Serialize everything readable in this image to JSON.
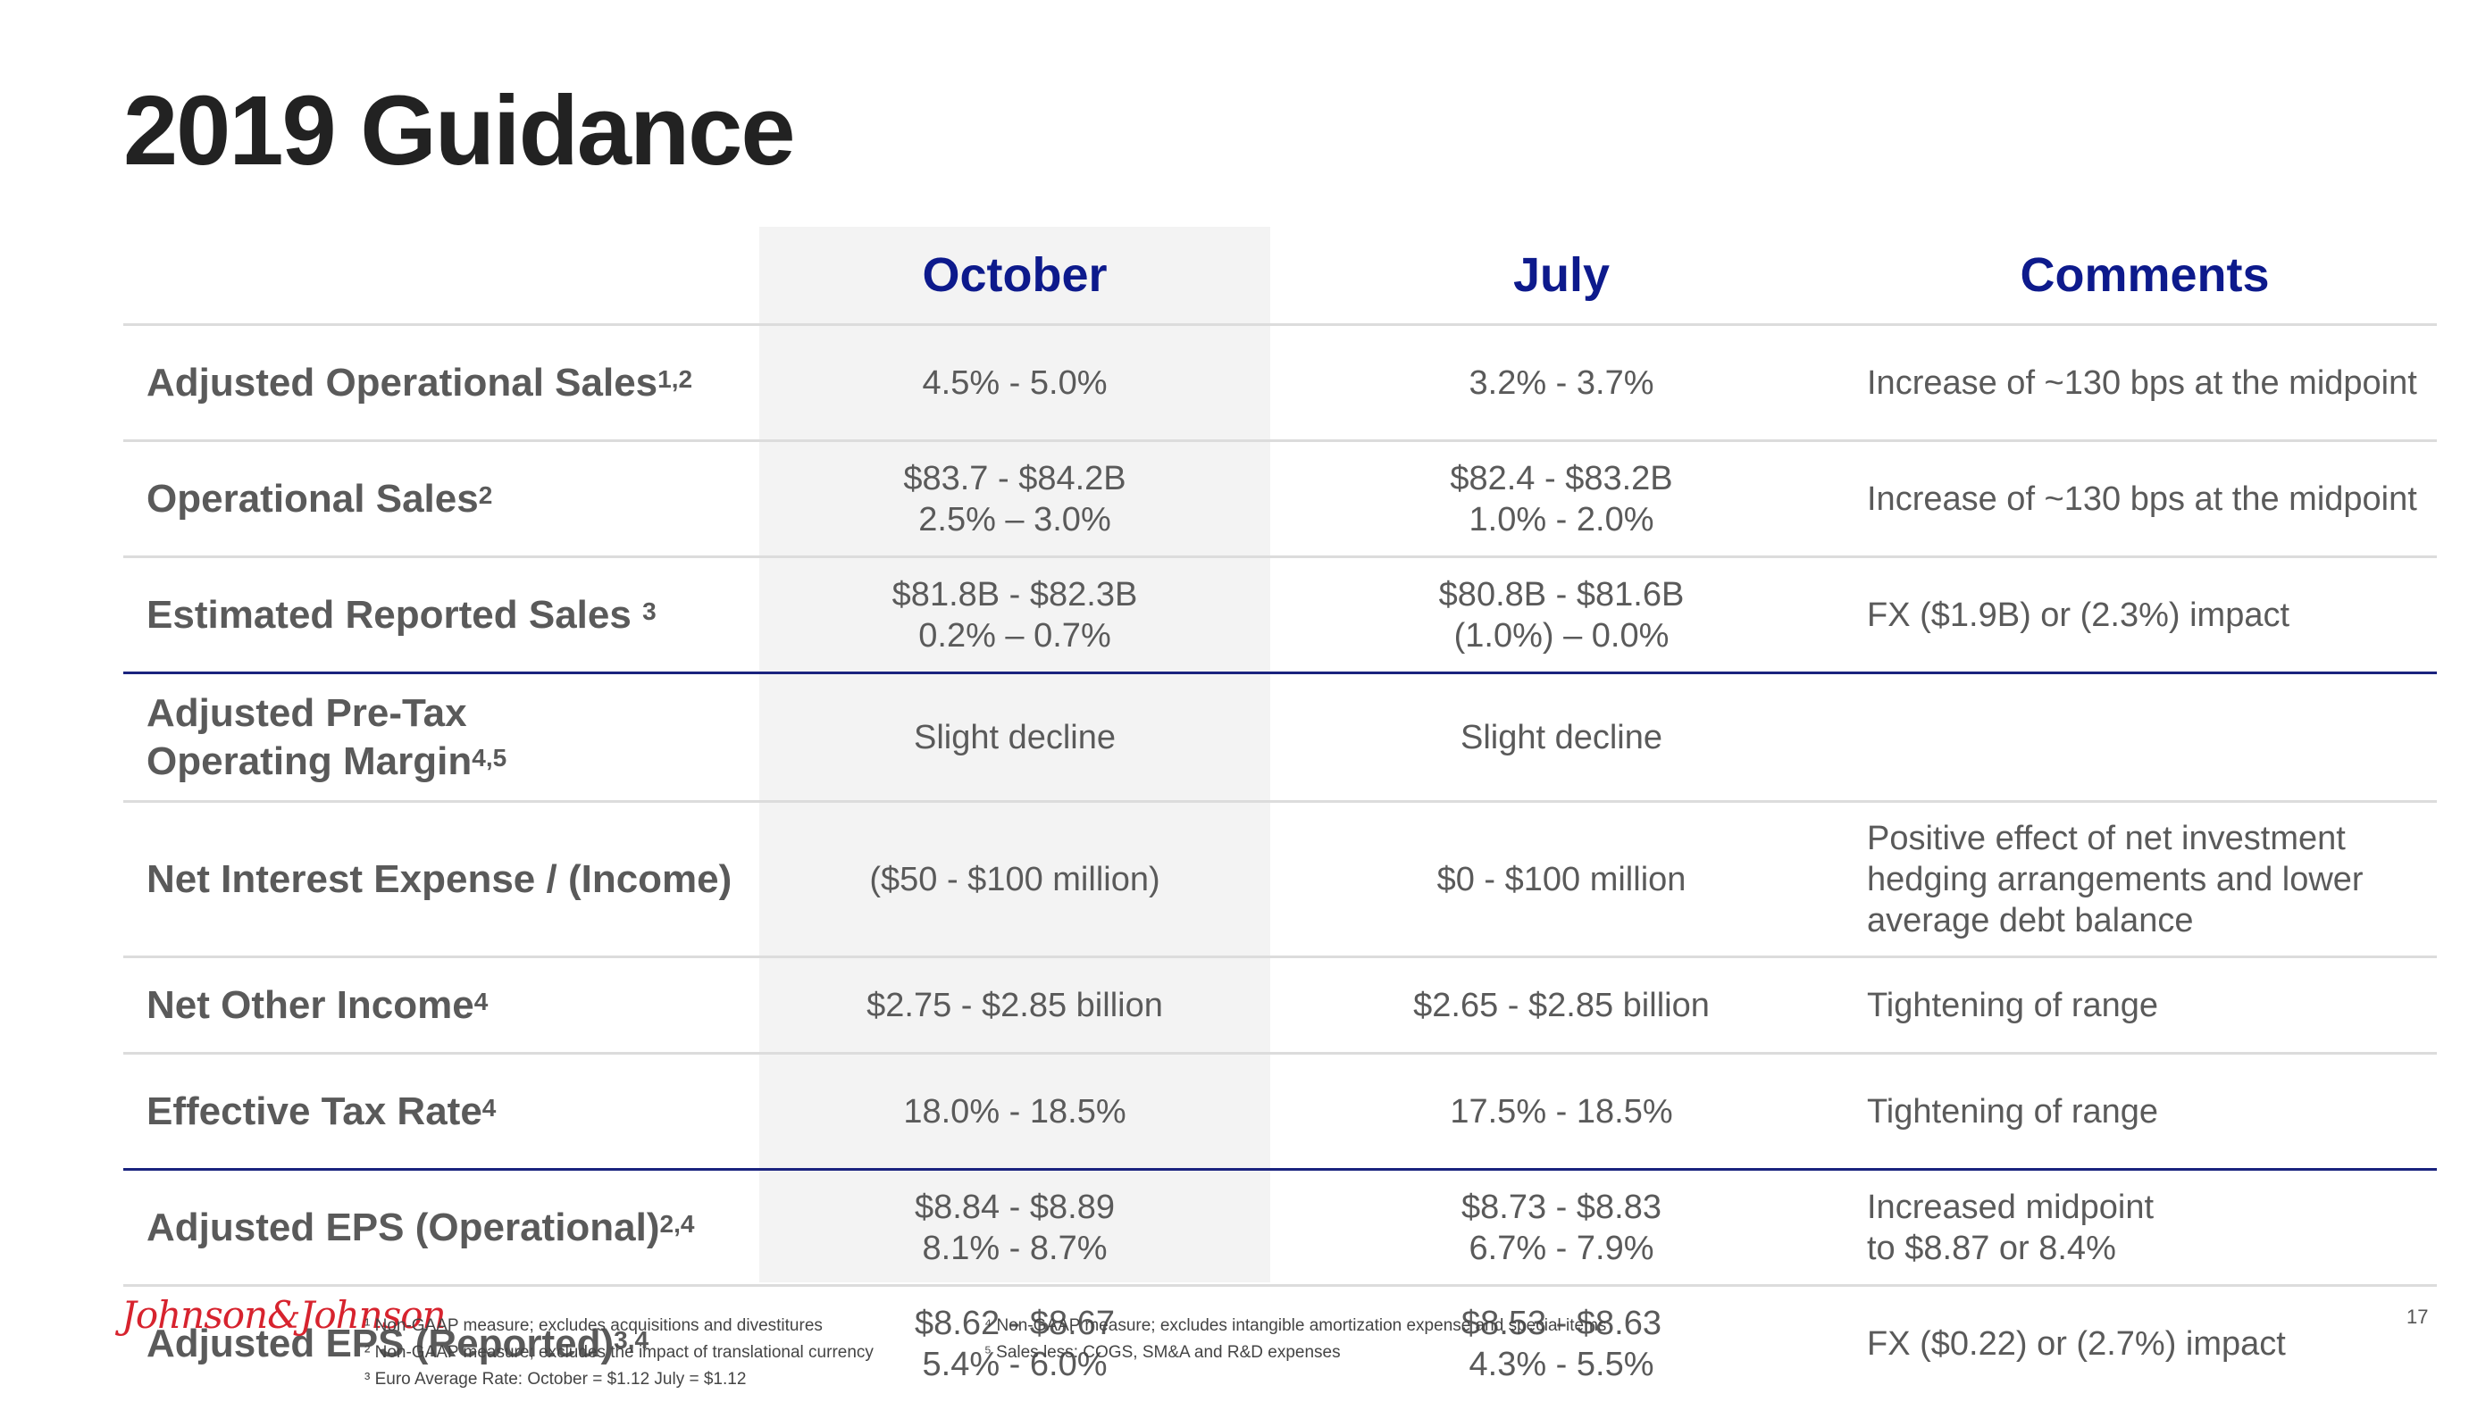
{
  "title": "2019 Guidance",
  "headers": {
    "label": "",
    "october": "October",
    "july": "July",
    "comments": "Comments"
  },
  "rows": [
    {
      "label": "Adjusted Operational Sales",
      "sup": "1,2",
      "october": [
        "4.5% - 5.0%"
      ],
      "july": [
        "3.2% - 3.7%"
      ],
      "comments": [
        "Increase of ~130 bps at the midpoint"
      ]
    },
    {
      "label": "Operational Sales",
      "sup": "2",
      "october": [
        "$83.7 - $84.2B",
        "2.5% – 3.0%"
      ],
      "july": [
        "$82.4 - $83.2B",
        "1.0% - 2.0%"
      ],
      "comments": [
        "Increase of ~130 bps at the midpoint"
      ]
    },
    {
      "label": "Estimated Reported Sales",
      "sup": "3",
      "october": [
        "$81.8B - $82.3B",
        "0.2% – 0.7%"
      ],
      "july": [
        "$80.8B - $81.6B",
        "(1.0%) – 0.0%"
      ],
      "comments": [
        "FX ($1.9B) or (2.3%) impact"
      ]
    },
    {
      "label_lines": [
        "Adjusted Pre-Tax",
        "Operating Margin"
      ],
      "sup": "4,5",
      "october": [
        "Slight decline"
      ],
      "july": [
        "Slight decline"
      ],
      "comments": []
    },
    {
      "label": "Net Interest Expense / (Income)",
      "sup": "",
      "october": [
        "($50 - $100 million)"
      ],
      "july": [
        "$0 - $100 million"
      ],
      "comments": [
        "Positive effect of net investment",
        "hedging arrangements and lower",
        "average debt balance"
      ]
    },
    {
      "label": "Net Other Income",
      "sup": "4",
      "october": [
        "$2.75 - $2.85 billion"
      ],
      "july": [
        "$2.65 - $2.85 billion"
      ],
      "comments": [
        "Tightening of range"
      ]
    },
    {
      "label": "Effective Tax Rate",
      "sup": "4",
      "october": [
        "18.0% - 18.5%"
      ],
      "july": [
        "17.5% - 18.5%"
      ],
      "comments": [
        "Tightening of range"
      ]
    },
    {
      "label": "Adjusted EPS (Operational)",
      "sup": "2,4",
      "october": [
        "$8.84 - $8.89",
        "8.1% - 8.7%"
      ],
      "july": [
        "$8.73 - $8.83",
        "6.7% - 7.9%"
      ],
      "comments": [
        "Increased midpoint",
        "to $8.87 or 8.4%"
      ]
    },
    {
      "label": "Adjusted EPS (Reported)",
      "sup": "3,4",
      "october": [
        "$8.62 - $8.67",
        "5.4% - 6.0%"
      ],
      "july": [
        "$8.53 - $8.63",
        "4.3% - 5.5%"
      ],
      "comments": [
        "FX ($0.22) or (2.7%) impact"
      ]
    }
  ],
  "logo_text": "Johnson&Johnson",
  "footnotes_left": [
    "¹ Non-GAAP measure; excludes acquisitions and divestitures",
    "² Non-GAAP measure; excludes the impact of translational currency",
    "³ Euro Average Rate: October = $1.12 July = $1.12"
  ],
  "footnotes_right": [
    "⁴ Non-GAAP measure; excludes intangible amortization expense and special items",
    "⁵ Sales less: COGS, SM&A and R&D expenses"
  ],
  "page_number": "17"
}
